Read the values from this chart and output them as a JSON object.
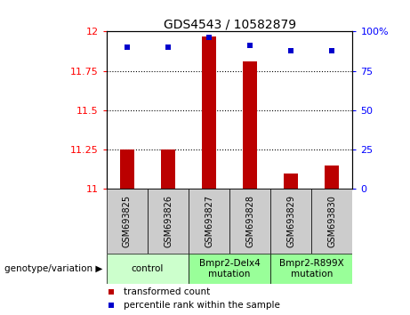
{
  "title": "GDS4543 / 10582879",
  "samples": [
    "GSM693825",
    "GSM693826",
    "GSM693827",
    "GSM693828",
    "GSM693829",
    "GSM693830"
  ],
  "bar_values": [
    11.25,
    11.25,
    11.97,
    11.81,
    11.1,
    11.15
  ],
  "percentile_values": [
    90,
    90,
    96,
    91,
    88,
    88
  ],
  "y_min": 11.0,
  "y_max": 12.0,
  "y_ticks": [
    11,
    11.25,
    11.5,
    11.75,
    12
  ],
  "y_tick_labels": [
    "11",
    "11.25",
    "11.5",
    "11.75",
    "12"
  ],
  "right_y_ticks": [
    0,
    25,
    50,
    75,
    100
  ],
  "right_y_tick_labels": [
    "0",
    "25",
    "50",
    "75",
    "100%"
  ],
  "bar_color": "#bb0000",
  "dot_color": "#0000cc",
  "bar_bottom": 11.0,
  "group_starts": [
    0,
    2,
    4
  ],
  "group_ends": [
    2,
    4,
    6
  ],
  "group_labels": [
    "control",
    "Bmpr2-Delx4\nmutation",
    "Bmpr2-R899X\nmutation"
  ],
  "group_colors": [
    "#ccffcc",
    "#99ff99",
    "#99ff99"
  ],
  "genotype_label": "genotype/variation ▶",
  "legend_items": [
    {
      "color": "#bb0000",
      "label": "transformed count"
    },
    {
      "color": "#0000cc",
      "label": "percentile rank within the sample"
    }
  ],
  "plot_bg_color": "#ffffff",
  "sample_cell_color": "#cccccc",
  "title_fontsize": 10,
  "tick_fontsize": 8,
  "sample_fontsize": 7,
  "group_fontsize": 7.5,
  "legend_fontsize": 7.5,
  "genotype_fontsize": 7.5
}
